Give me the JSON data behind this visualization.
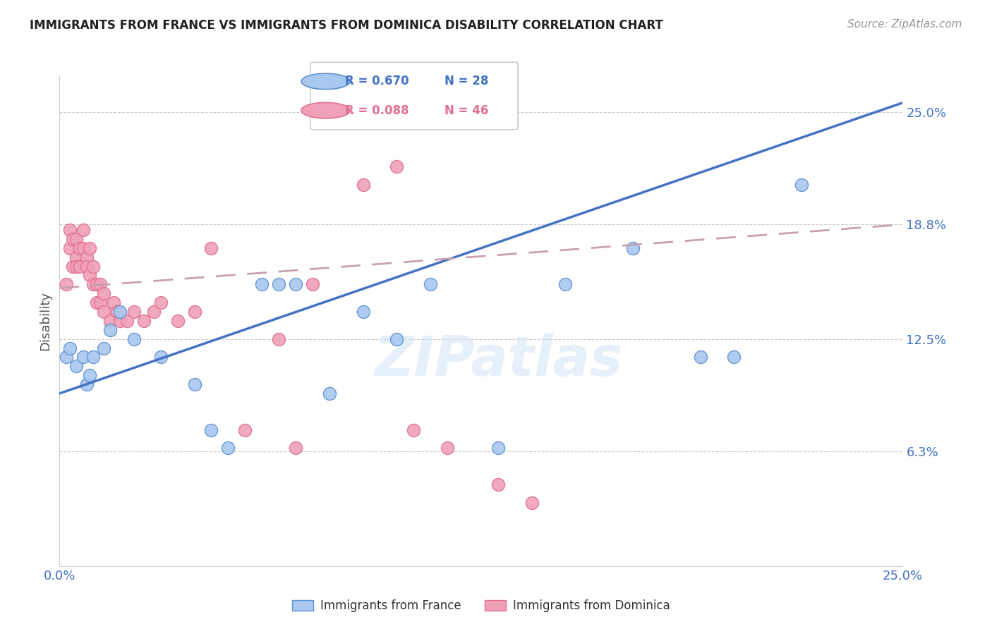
{
  "title": "IMMIGRANTS FROM FRANCE VS IMMIGRANTS FROM DOMINICA DISABILITY CORRELATION CHART",
  "source": "Source: ZipAtlas.com",
  "ylabel": "Disability",
  "color_france": "#A8C8F0",
  "color_dominica": "#F0A0B8",
  "color_france_line": "#4472C4",
  "color_dominica_line": "#C8A0B0",
  "color_axis": "#4472C4",
  "color_grid": "#CCCCCC",
  "xlim": [
    0.0,
    0.25
  ],
  "ylim": [
    0.0,
    0.27
  ],
  "ytick_vals": [
    0.063,
    0.125,
    0.188,
    0.25
  ],
  "ytick_labels": [
    "6.3%",
    "12.5%",
    "18.8%",
    "25.0%"
  ],
  "legend_r1": "R = 0.670",
  "legend_n1": "N = 28",
  "legend_r2": "R = 0.088",
  "legend_n2": "N = 46",
  "france_x": [
    0.002,
    0.003,
    0.005,
    0.007,
    0.008,
    0.009,
    0.01,
    0.013,
    0.015,
    0.018,
    0.022,
    0.03,
    0.04,
    0.045,
    0.05,
    0.06,
    0.065,
    0.07,
    0.08,
    0.09,
    0.1,
    0.11,
    0.13,
    0.15,
    0.17,
    0.19,
    0.2,
    0.22
  ],
  "france_y": [
    0.115,
    0.12,
    0.11,
    0.115,
    0.1,
    0.105,
    0.115,
    0.12,
    0.13,
    0.14,
    0.125,
    0.115,
    0.1,
    0.075,
    0.065,
    0.155,
    0.155,
    0.155,
    0.095,
    0.14,
    0.125,
    0.155,
    0.065,
    0.155,
    0.175,
    0.115,
    0.115,
    0.21
  ],
  "dominica_x": [
    0.002,
    0.003,
    0.003,
    0.004,
    0.004,
    0.005,
    0.005,
    0.005,
    0.006,
    0.006,
    0.007,
    0.007,
    0.008,
    0.008,
    0.009,
    0.009,
    0.01,
    0.01,
    0.011,
    0.011,
    0.012,
    0.012,
    0.013,
    0.013,
    0.015,
    0.016,
    0.017,
    0.018,
    0.02,
    0.022,
    0.025,
    0.028,
    0.03,
    0.035,
    0.04,
    0.045,
    0.055,
    0.065,
    0.07,
    0.075,
    0.09,
    0.1,
    0.105,
    0.115,
    0.13,
    0.14
  ],
  "dominica_y": [
    0.155,
    0.175,
    0.185,
    0.165,
    0.18,
    0.18,
    0.17,
    0.165,
    0.175,
    0.165,
    0.185,
    0.175,
    0.17,
    0.165,
    0.175,
    0.16,
    0.165,
    0.155,
    0.155,
    0.145,
    0.155,
    0.145,
    0.15,
    0.14,
    0.135,
    0.145,
    0.14,
    0.135,
    0.135,
    0.14,
    0.135,
    0.14,
    0.145,
    0.135,
    0.14,
    0.175,
    0.075,
    0.125,
    0.065,
    0.155,
    0.21,
    0.22,
    0.075,
    0.065,
    0.045,
    0.035
  ],
  "france_line_x": [
    0.0,
    0.25
  ],
  "france_line_y": [
    0.095,
    0.255
  ],
  "dominica_line_x": [
    0.0,
    0.25
  ],
  "dominica_line_y": [
    0.153,
    0.188
  ]
}
